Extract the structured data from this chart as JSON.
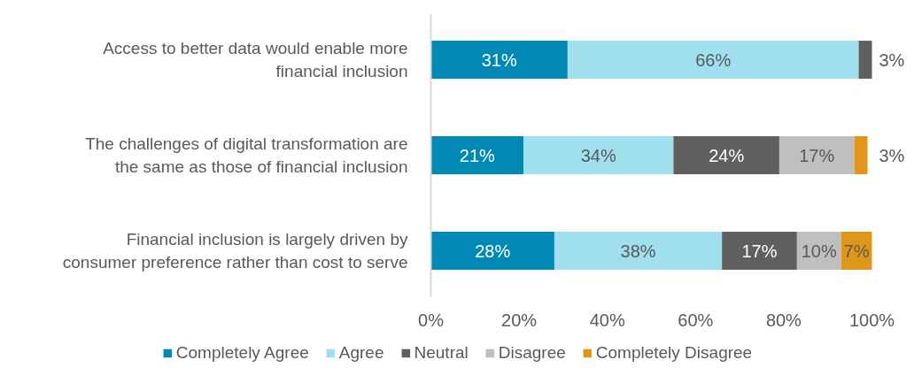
{
  "chart_data": {
    "type": "bar",
    "orientation": "horizontal",
    "stacked": true,
    "categories": [
      "Access to better data would enable more financial inclusion",
      "The challenges of digital transformation are the same as those of financial inclusion",
      "Financial inclusion is largely driven by consumer preference rather than cost to serve"
    ],
    "series": [
      {
        "name": "Completely Agree",
        "color": "#0089b5",
        "values": [
          31,
          21,
          28
        ],
        "value_labels": [
          "31%",
          "21%",
          "28%"
        ]
      },
      {
        "name": "Agree",
        "color": "#9fdfee",
        "values": [
          66,
          34,
          38
        ],
        "value_labels": [
          "66%",
          "34%",
          "38%"
        ]
      },
      {
        "name": "Neutral",
        "color": "#5f5f5f",
        "values": [
          3,
          24,
          17
        ],
        "value_labels": [
          "3%",
          "24%",
          "17%"
        ]
      },
      {
        "name": "Disagree",
        "color": "#bfbfbf",
        "values": [
          null,
          17,
          10
        ],
        "value_labels": [
          null,
          "17%",
          "10%"
        ]
      },
      {
        "name": "Completely Disagree",
        "color": "#e09719",
        "values": [
          null,
          3,
          7
        ],
        "value_labels": [
          null,
          "3%",
          "7%"
        ]
      }
    ],
    "xlim": [
      0,
      100
    ],
    "xticks": [
      {
        "value": 0,
        "label": "0%"
      },
      {
        "value": 20,
        "label": "20%"
      },
      {
        "value": 40,
        "label": "40%"
      },
      {
        "value": 60,
        "label": "60%"
      },
      {
        "value": 80,
        "label": "80%"
      },
      {
        "value": 100,
        "label": "100%"
      }
    ],
    "legend": "bottom",
    "grid": false
  }
}
